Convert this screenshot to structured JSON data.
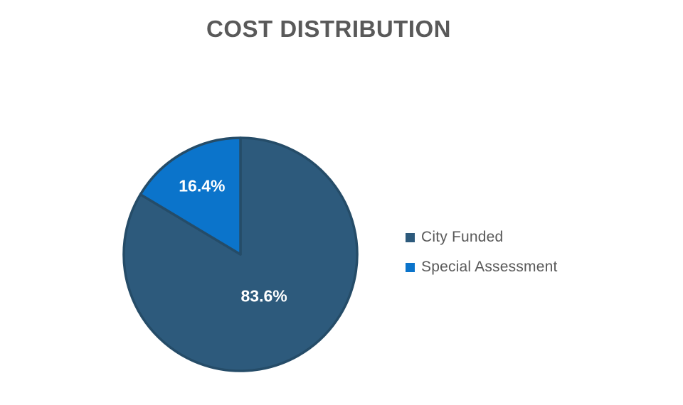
{
  "chart_data": {
    "type": "pie",
    "title": "COST DISTRIBUTION",
    "categories": [
      "City Funded",
      "Special Assessment"
    ],
    "values": [
      83.6,
      16.4
    ],
    "unit": "%",
    "slices": [
      {
        "label": "City Funded",
        "value": 83.6,
        "display": "83.6%",
        "color": "#2D5A7C"
      },
      {
        "label": "Special Assessment",
        "value": 16.4,
        "display": "16.4%",
        "color": "#0B74CB"
      }
    ],
    "start_angle_deg": 0,
    "direction": "clockwise",
    "legend_position": "right",
    "grid": false,
    "colors": {
      "slice_border": "#254C68",
      "data_label": "#FFFFFF",
      "title": "#595959",
      "legend_text": "#595959",
      "background": "#FFFFFF"
    }
  }
}
